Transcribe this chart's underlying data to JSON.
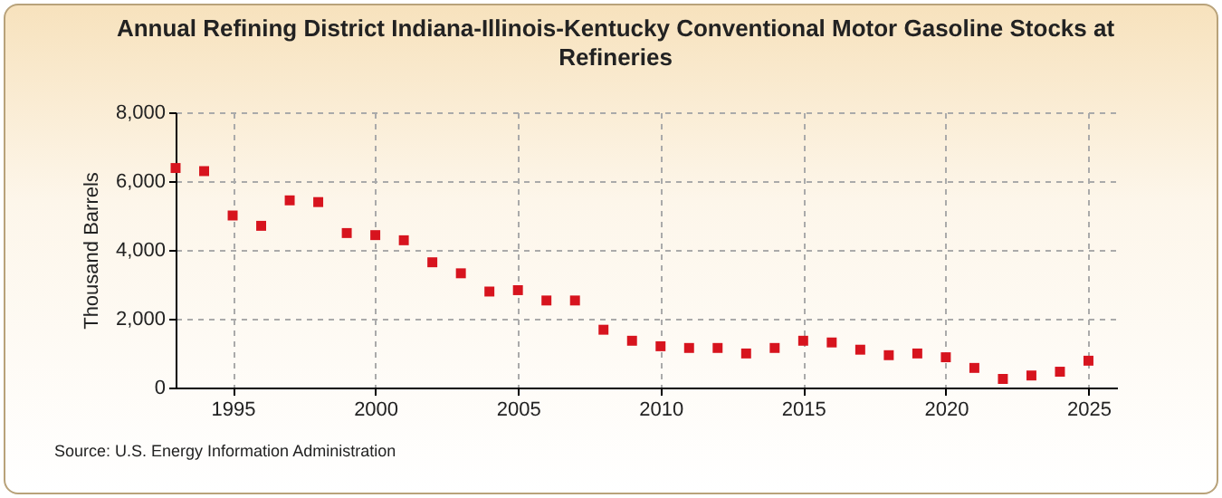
{
  "chart_data": {
    "type": "scatter",
    "title": "Annual Refining District Indiana-Illinois-Kentucky Conventional Motor Gasoline Stocks at Refineries",
    "ylabel": "Thousand Barrels",
    "annotations": [
      "Source: U.S. Energy Information Administration"
    ],
    "x": [
      1993,
      1994,
      1995,
      1996,
      1997,
      1998,
      1999,
      2000,
      2001,
      2002,
      2003,
      2004,
      2005,
      2006,
      2007,
      2008,
      2009,
      2010,
      2011,
      2012,
      2013,
      2014,
      2015,
      2016,
      2017,
      2018,
      2019,
      2020,
      2021,
      2022,
      2023,
      2024,
      2025
    ],
    "series": [
      {
        "color": "#d7141e",
        "values": [
          6380,
          6290,
          5000,
          4700,
          5440,
          5390,
          4490,
          4430,
          4280,
          3640,
          3320,
          2790,
          2830,
          2530,
          2530,
          1680,
          1360,
          1200,
          1150,
          1150,
          990,
          1150,
          1360,
          1310,
          1100,
          940,
          990,
          880,
          570,
          250,
          350,
          460,
          780
        ]
      }
    ],
    "xlim": [
      1993,
      2026
    ],
    "xticks": [
      1995,
      2000,
      2005,
      2010,
      2015,
      2020,
      2025
    ],
    "ylim": [
      0,
      8000
    ],
    "yticks": [
      0,
      {
        "value": 2000,
        "label": "2,000"
      },
      {
        "value": 4000,
        "label": "4,000"
      },
      {
        "value": 6000,
        "label": "6,000"
      },
      {
        "value": 8000,
        "label": "8,000"
      }
    ],
    "grid": true,
    "marker": "square",
    "legend": false
  }
}
